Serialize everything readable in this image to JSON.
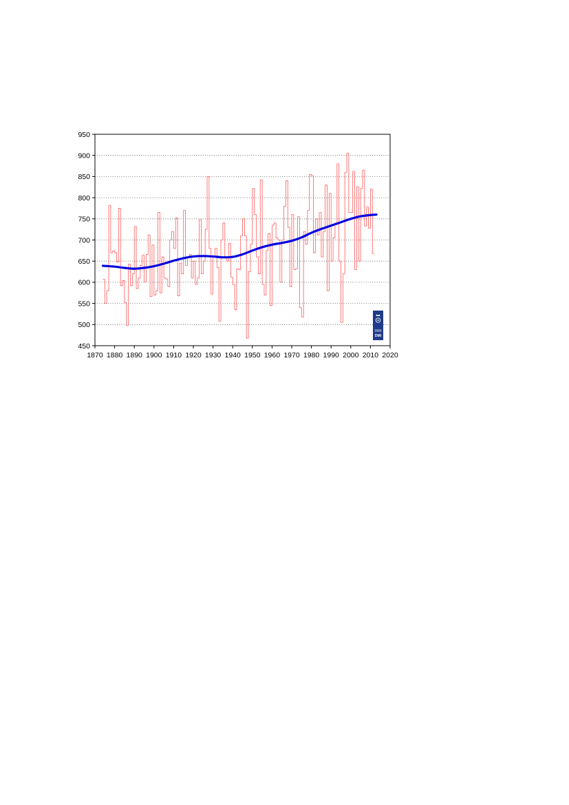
{
  "chart_data": {
    "type": "line",
    "title": "",
    "xlabel": "",
    "ylabel": "",
    "xlim": [
      1870,
      2020
    ],
    "ylim": [
      450,
      950
    ],
    "x_ticks": [
      "1870",
      "1880",
      "1890",
      "1900",
      "1910",
      "1920",
      "1930",
      "1940",
      "1950",
      "1960",
      "1970",
      "1980",
      "1990",
      "2000",
      "2010",
      "2020"
    ],
    "y_ticks": [
      "450",
      "500",
      "550",
      "600",
      "650",
      "700",
      "750",
      "800",
      "850",
      "900",
      "950"
    ],
    "grid": "horizontal-dotted",
    "legend": "none",
    "series": [
      {
        "style": "step",
        "color": "#ff5a5a",
        "x_start": 1874,
        "values": [
          607,
          550,
          580,
          782,
          670,
          674,
          670,
          648,
          775,
          592,
          604,
          552,
          498,
          643,
          592,
          620,
          732,
          585,
          610,
          640,
          664,
          600,
          666,
          712,
          566,
          688,
          570,
          580,
          765,
          575,
          660,
          610,
          608,
          590,
          700,
          720,
          680,
          752,
          568,
          645,
          620,
          770,
          640,
          660,
          666,
          610,
          650,
          595,
          610,
          748,
          620,
          650,
          725,
          850,
          680,
          572,
          660,
          680,
          635,
          508,
          700,
          740,
          660,
          650,
          692,
          612,
          595,
          535,
          632,
          630,
          710,
          750,
          710,
          468,
          625,
          690,
          822,
          760,
          660,
          620,
          842,
          595,
          570,
          675,
          715,
          545,
          735,
          740,
          705,
          700,
          600,
          700,
          780,
          840,
          730,
          590,
          760,
          630,
          632,
          755,
          540,
          518,
          720,
          690,
          770,
          855,
          852,
          670,
          750,
          712,
          765,
          660,
          720,
          830,
          580,
          810,
          650,
          705,
          740,
          880,
          650,
          505,
          620,
          860,
          905,
          765,
          765,
          862,
          630,
          826,
          650,
          822,
          865,
          733,
          778,
          728,
          820,
          668
        ]
      },
      {
        "style": "smooth",
        "color": "#0000e0",
        "x": [
          1874,
          1880,
          1885,
          1890,
          1895,
          1900,
          1905,
          1910,
          1915,
          1920,
          1925,
          1930,
          1935,
          1940,
          1945,
          1950,
          1955,
          1960,
          1965,
          1970,
          1975,
          1980,
          1985,
          1990,
          1995,
          2000,
          2005,
          2010,
          2013
        ],
        "values": [
          639,
          637,
          634,
          632,
          634,
          638,
          644,
          651,
          657,
          661,
          662,
          661,
          659,
          660,
          666,
          675,
          683,
          689,
          693,
          698,
          706,
          717,
          726,
          734,
          742,
          750,
          756,
          759,
          760
        ]
      }
    ]
  },
  "logo": {
    "name": "dmi-logo-icon",
    "text": "DMI",
    "color": "#1f3a8a"
  }
}
